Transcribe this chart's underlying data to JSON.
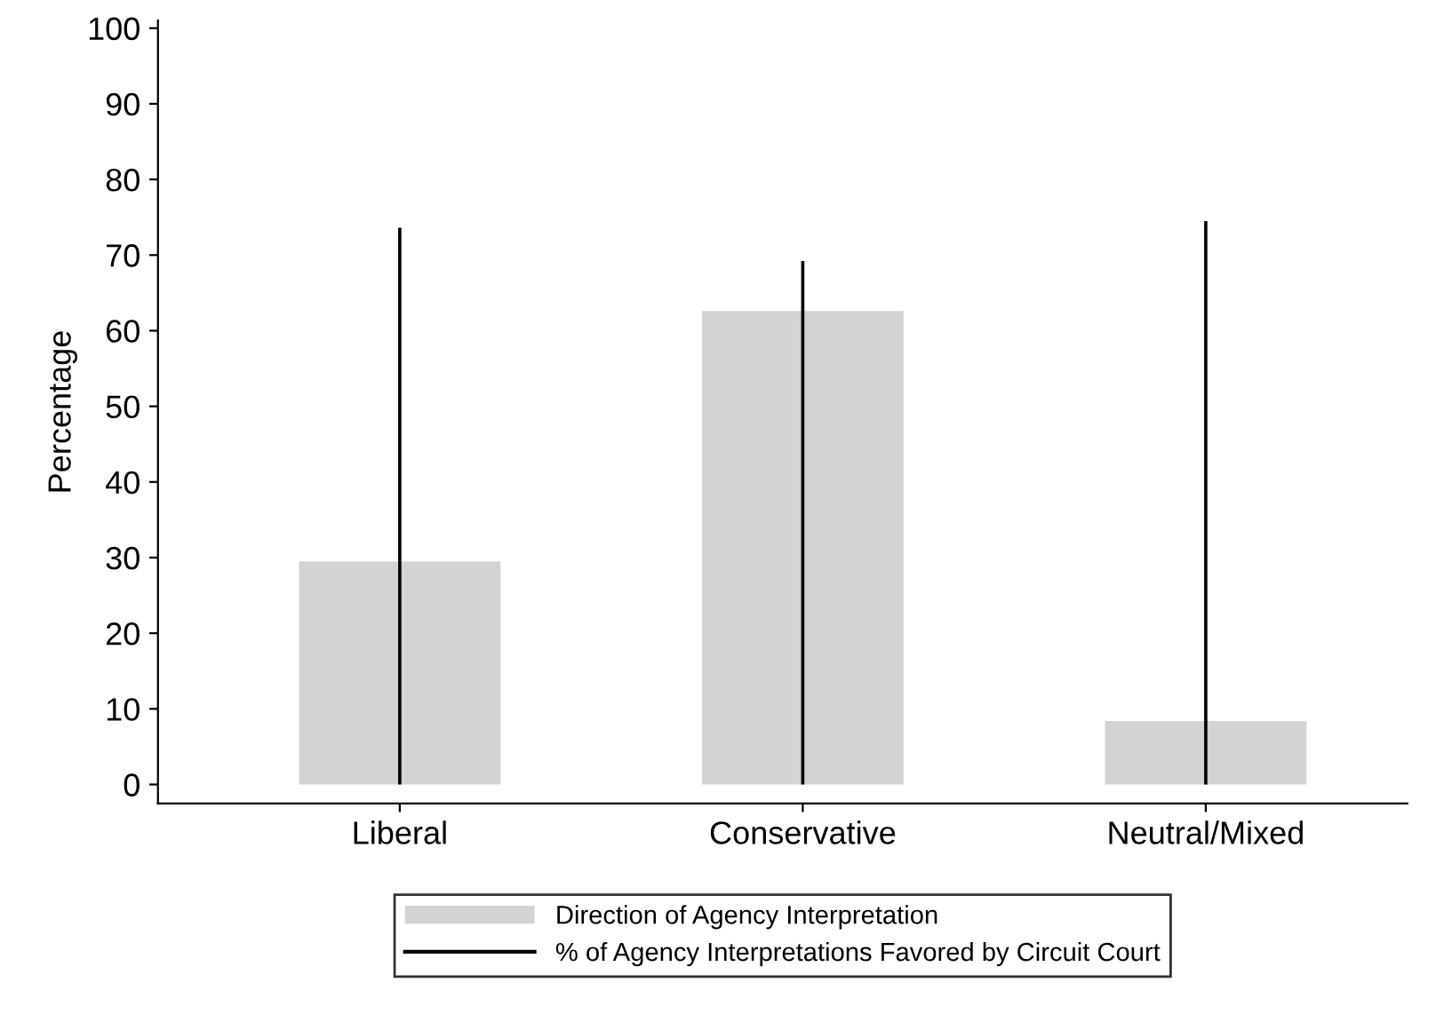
{
  "chart_data": {
    "type": "bar",
    "ylabel": "Percentage",
    "categories": [
      "Liberal",
      "Conservative",
      "Neutral/Mixed"
    ],
    "series": [
      {
        "name": "Direction of Agency Interpretation",
        "color": "#d3d3d3",
        "values": [
          29.5,
          62.6,
          8.4
        ]
      },
      {
        "name": "% of Agency Interpretations Favored by Circuit Court",
        "type": "bar",
        "color": "#000000",
        "values": [
          73.6,
          69.2,
          74.5
        ]
      }
    ],
    "ylim": [
      -2.5,
      101
    ],
    "yticks": [
      0,
      10,
      20,
      30,
      40,
      50,
      60,
      70,
      80,
      90,
      100
    ],
    "grid": false,
    "legend": "bottom"
  }
}
